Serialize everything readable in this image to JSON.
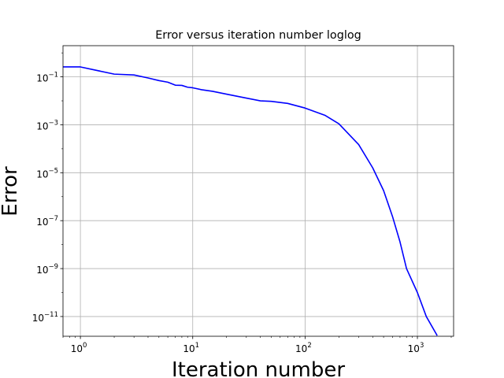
{
  "chart_data": {
    "type": "line",
    "title": "Error versus iteration number loglog",
    "xlabel": "Iteration number",
    "ylabel": "Error",
    "xscale": "log",
    "yscale": "log",
    "xlim": [
      0.7,
      2100
    ],
    "ylim": [
      1.5e-12,
      2.0
    ],
    "grid": true,
    "xticks": [
      {
        "base": "10",
        "exp": "0",
        "value": 1
      },
      {
        "base": "10",
        "exp": "1",
        "value": 10
      },
      {
        "base": "10",
        "exp": "2",
        "value": 100
      },
      {
        "base": "10",
        "exp": "3",
        "value": 1000
      }
    ],
    "yticks": [
      {
        "base": "10",
        "exp": "−11",
        "value": 1e-11
      },
      {
        "base": "10",
        "exp": "−9",
        "value": 1e-09
      },
      {
        "base": "10",
        "exp": "−7",
        "value": 1e-07
      },
      {
        "base": "10",
        "exp": "−5",
        "value": 1e-05
      },
      {
        "base": "10",
        "exp": "−3",
        "value": 0.001
      },
      {
        "base": "10",
        "exp": "−1",
        "value": 0.1
      }
    ],
    "series": [
      {
        "color": "#0000ff",
        "x": [
          0.7,
          1,
          2,
          3,
          4,
          5,
          6,
          7,
          8,
          9,
          10,
          12,
          15,
          20,
          30,
          40,
          50,
          70,
          100,
          150,
          200,
          300,
          400,
          500,
          600,
          700,
          800,
          1000,
          1200,
          1500
        ],
        "y": [
          0.26,
          0.26,
          0.13,
          0.12,
          0.09,
          0.07,
          0.06,
          0.045,
          0.044,
          0.037,
          0.035,
          0.029,
          0.025,
          0.019,
          0.013,
          0.01,
          0.0095,
          0.0078,
          0.005,
          0.0025,
          0.0011,
          0.00015,
          1.6e-05,
          1.8e-06,
          1.5e-07,
          1.3e-08,
          1e-09,
          1e-10,
          1e-11,
          1.6e-12
        ]
      }
    ]
  }
}
